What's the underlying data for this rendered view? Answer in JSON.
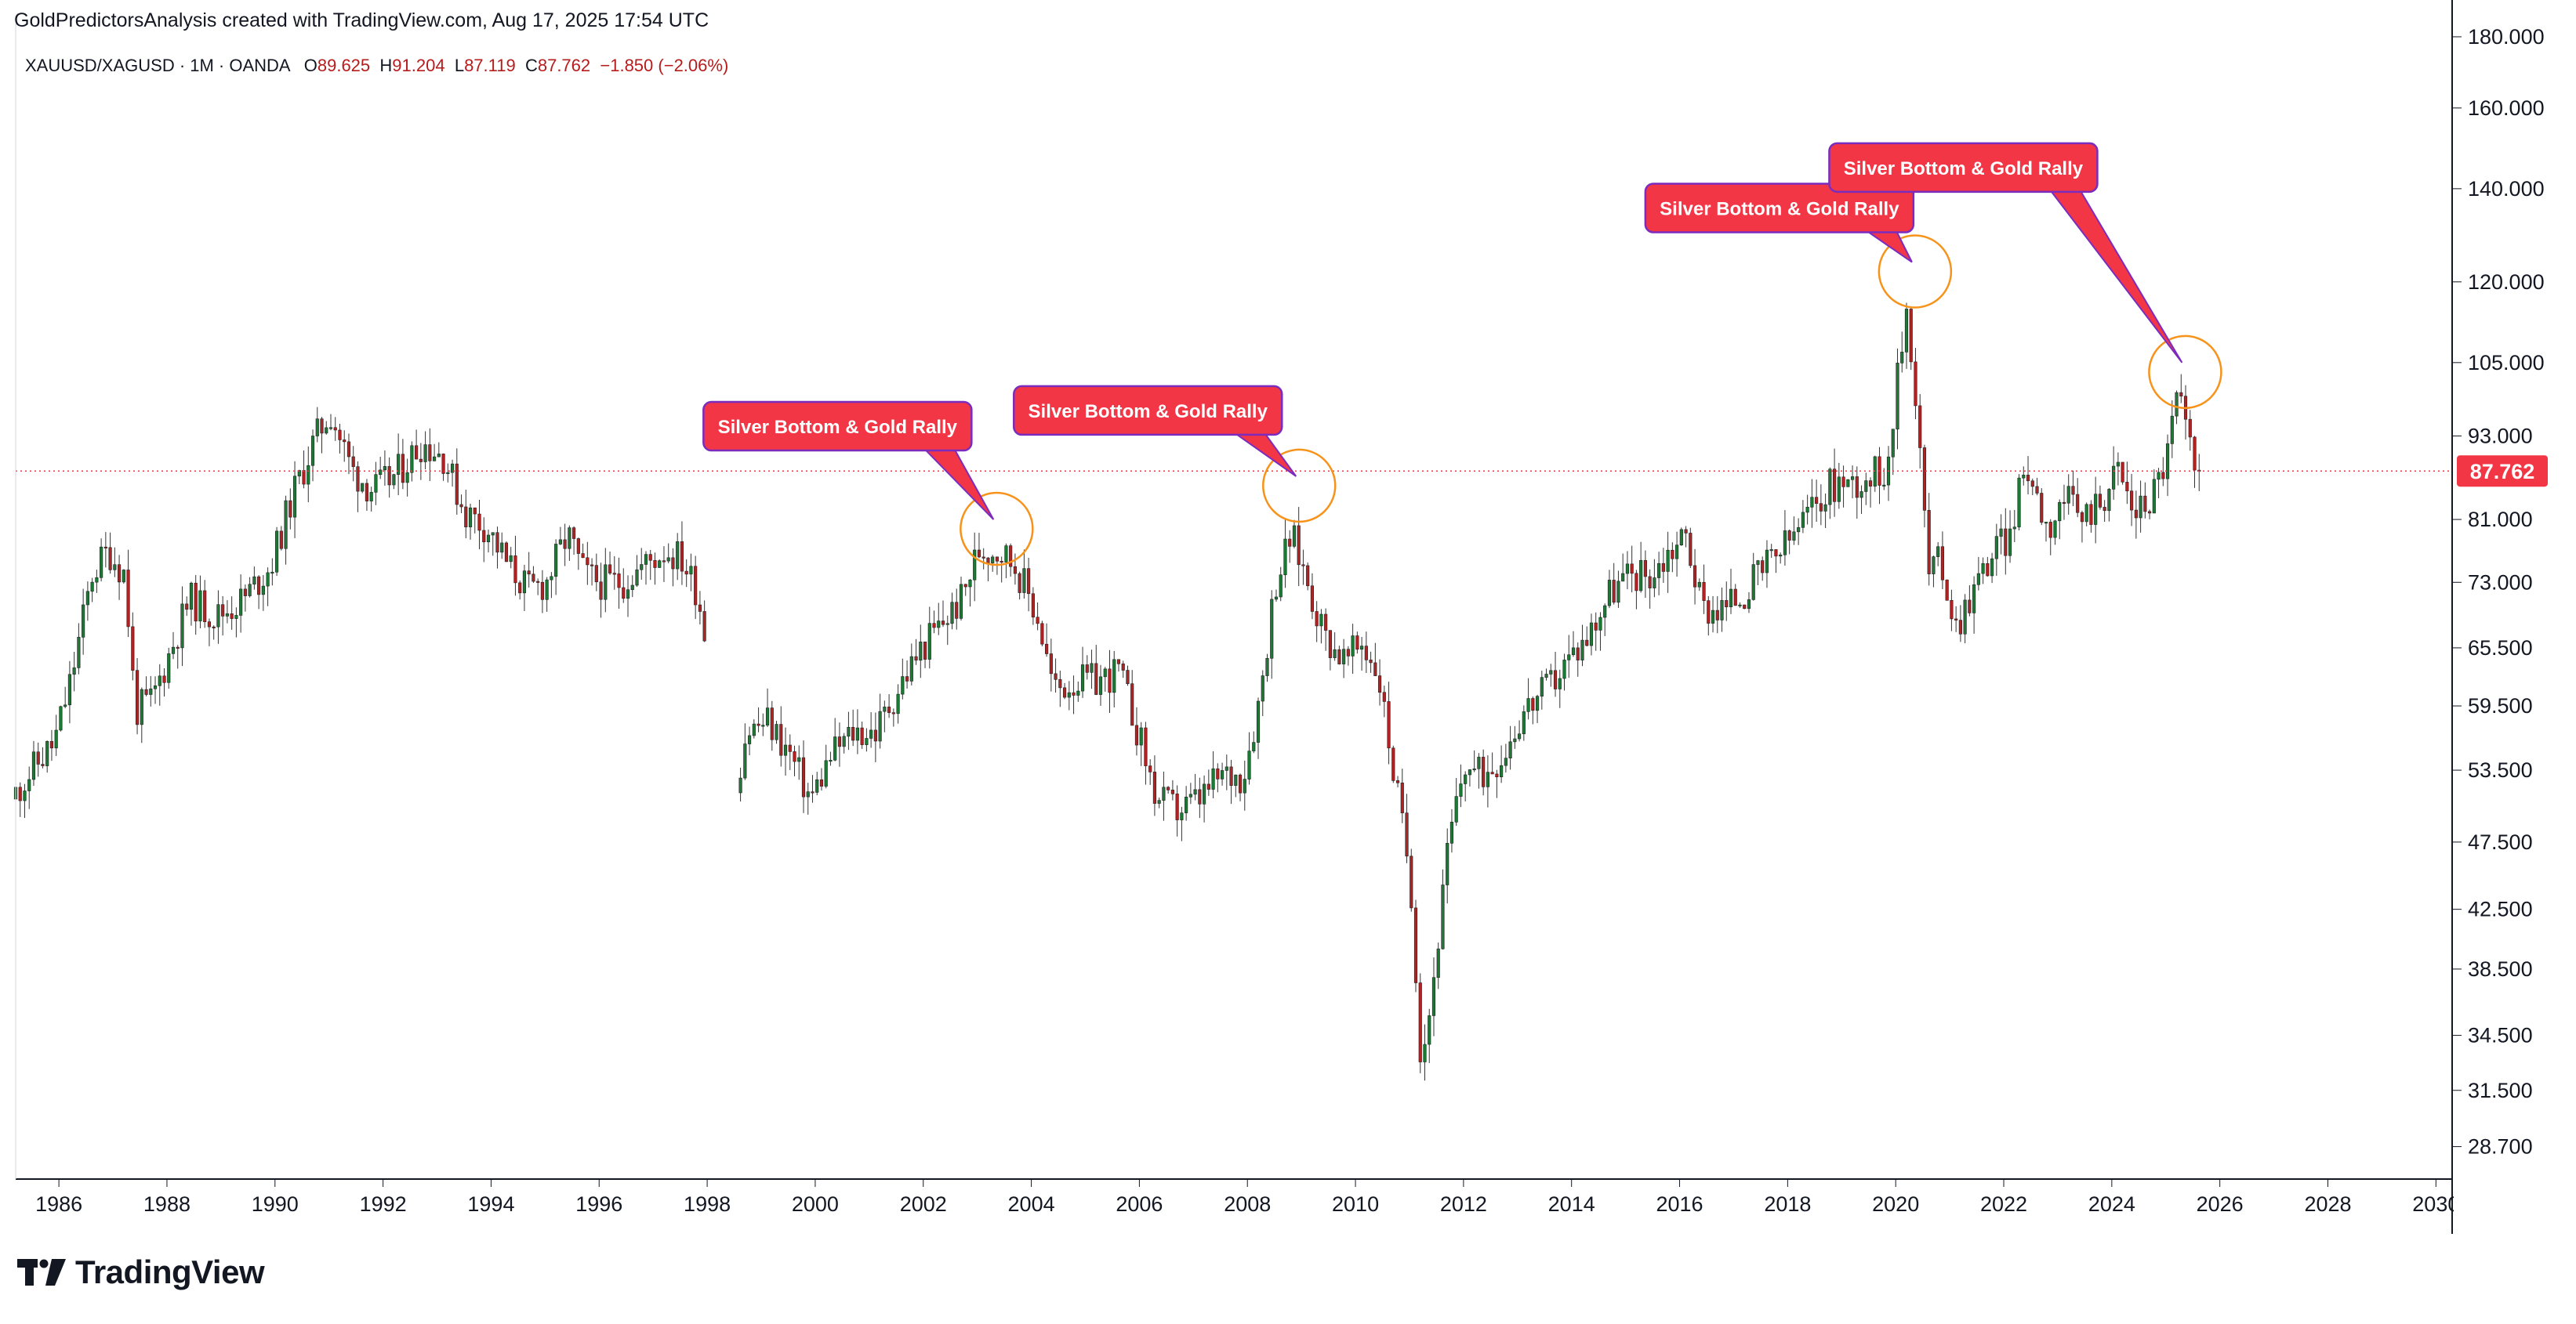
{
  "attribution": "GoldPredictorsAnalysis created with TradingView.com, Aug 17, 2025 17:54 UTC",
  "legend": {
    "symbol": "XAUUSD/XAGUSD · 1M · OANDA",
    "open_label": "O",
    "open": "89.625",
    "high_label": "H",
    "high": "91.204",
    "low_label": "L",
    "low": "87.119",
    "close_label": "C",
    "close": "87.762",
    "change": "−1.850 (−2.06%)"
  },
  "brand": "TradingView",
  "colors": {
    "up": "#26a69a",
    "down": "#b71c1c",
    "bar_up": "#1b7a34",
    "bar_down": "#b22222",
    "callout": "#f23645",
    "callout_border": "#7b2cbf",
    "circle": "#f7931a",
    "price_line": "#f23645"
  },
  "chart_data": {
    "type": "candlestick",
    "title": "XAUUSD/XAGUSD · 1M · OANDA",
    "y_scale": "log",
    "ylim": [
      27.2,
      184
    ],
    "xlim": [
      1985.2,
      2030.3
    ],
    "x_ticks": [
      "1986",
      "1988",
      "1990",
      "1992",
      "1994",
      "1996",
      "1998",
      "2000",
      "2002",
      "2004",
      "2006",
      "2008",
      "2010",
      "2012",
      "2014",
      "2016",
      "2018",
      "2020",
      "2022",
      "2024",
      "2026",
      "2028",
      "2030"
    ],
    "y_ticks": [
      "180.000",
      "160.000",
      "140.000",
      "120.000",
      "105.000",
      "93.000",
      "81.000",
      "73.000",
      "65.500",
      "59.500",
      "53.500",
      "47.500",
      "42.500",
      "38.500",
      "34.500",
      "31.500",
      "28.700"
    ],
    "last_price": "87.762",
    "anchors": [
      [
        1985.2,
        51
      ],
      [
        1985.5,
        53
      ],
      [
        1986.0,
        56
      ],
      [
        1986.3,
        62
      ],
      [
        1986.7,
        74
      ],
      [
        1987.0,
        77
      ],
      [
        1987.3,
        74
      ],
      [
        1987.5,
        59
      ],
      [
        1987.8,
        60
      ],
      [
        1988.2,
        66
      ],
      [
        1988.5,
        71
      ],
      [
        1989.0,
        69
      ],
      [
        1989.5,
        71
      ],
      [
        1990.0,
        75
      ],
      [
        1990.4,
        84
      ],
      [
        1990.8,
        92
      ],
      [
        1991.1,
        97
      ],
      [
        1991.5,
        88
      ],
      [
        1991.9,
        85
      ],
      [
        1992.3,
        87
      ],
      [
        1992.8,
        92
      ],
      [
        1993.2,
        90
      ],
      [
        1993.6,
        82
      ],
      [
        1994.0,
        80
      ],
      [
        1994.4,
        75
      ],
      [
        1994.8,
        72
      ],
      [
        1995.1,
        73
      ],
      [
        1995.5,
        79
      ],
      [
        1995.8,
        74
      ],
      [
        1996.1,
        73
      ],
      [
        1996.5,
        73
      ],
      [
        1996.9,
        75
      ],
      [
        1997.3,
        77
      ],
      [
        1997.6,
        76
      ],
      [
        1997.9,
        72
      ],
      [
        1998.2,
        62
      ],
      [
        1998.5,
        49
      ],
      [
        1998.8,
        57
      ],
      [
        1999.2,
        58
      ],
      [
        1999.6,
        55
      ],
      [
        2000.0,
        51
      ],
      [
        2000.4,
        55
      ],
      [
        2000.8,
        57
      ],
      [
        2001.2,
        57
      ],
      [
        2001.6,
        61
      ],
      [
        2002.0,
        65
      ],
      [
        2002.4,
        68
      ],
      [
        2002.8,
        71
      ],
      [
        2003.1,
        77
      ],
      [
        2003.5,
        77
      ],
      [
        2003.8,
        75
      ],
      [
        2004.2,
        69
      ],
      [
        2004.5,
        61
      ],
      [
        2004.9,
        62
      ],
      [
        2005.3,
        62
      ],
      [
        2005.7,
        63
      ],
      [
        2006.0,
        58
      ],
      [
        2006.4,
        51
      ],
      [
        2006.8,
        50
      ],
      [
        2007.2,
        51
      ],
      [
        2007.6,
        53
      ],
      [
        2008.0,
        53
      ],
      [
        2008.3,
        60
      ],
      [
        2008.6,
        73
      ],
      [
        2008.9,
        79
      ],
      [
        2009.2,
        73
      ],
      [
        2009.5,
        67
      ],
      [
        2009.9,
        64
      ],
      [
        2010.2,
        66
      ],
      [
        2010.5,
        63
      ],
      [
        2010.8,
        53
      ],
      [
        2011.1,
        45
      ],
      [
        2011.3,
        33
      ],
      [
        2011.5,
        37
      ],
      [
        2011.8,
        47
      ],
      [
        2012.1,
        54
      ],
      [
        2012.4,
        53
      ],
      [
        2012.8,
        55
      ],
      [
        2013.2,
        59
      ],
      [
        2013.6,
        61
      ],
      [
        2014.0,
        64
      ],
      [
        2014.4,
        67
      ],
      [
        2014.8,
        72
      ],
      [
        2015.2,
        74
      ],
      [
        2015.6,
        74
      ],
      [
        2015.9,
        77
      ],
      [
        2016.2,
        79
      ],
      [
        2016.5,
        70
      ],
      [
        2016.9,
        70
      ],
      [
        2017.3,
        72
      ],
      [
        2017.7,
        75
      ],
      [
        2018.1,
        78
      ],
      [
        2018.5,
        82
      ],
      [
        2018.9,
        86
      ],
      [
        2019.3,
        86
      ],
      [
        2019.6,
        87
      ],
      [
        2019.9,
        88
      ],
      [
        2020.1,
        101
      ],
      [
        2020.3,
        116
      ],
      [
        2020.5,
        94
      ],
      [
        2020.7,
        74
      ],
      [
        2020.9,
        76
      ],
      [
        2021.2,
        68
      ],
      [
        2021.5,
        72
      ],
      [
        2021.9,
        77
      ],
      [
        2022.2,
        79
      ],
      [
        2022.5,
        89
      ],
      [
        2022.9,
        80
      ],
      [
        2023.2,
        84
      ],
      [
        2023.5,
        81
      ],
      [
        2023.9,
        84
      ],
      [
        2024.2,
        88
      ],
      [
        2024.5,
        82
      ],
      [
        2024.8,
        84
      ],
      [
        2025.1,
        90
      ],
      [
        2025.3,
        100
      ],
      [
        2025.5,
        92
      ],
      [
        2025.62,
        87.762
      ]
    ],
    "annotations": [
      {
        "label": "Silver Bottom & Gold Rally",
        "target_x": 2003.3,
        "target_y": 81
      },
      {
        "label": "Silver Bottom & Gold Rally",
        "target_x": 2008.9,
        "target_y": 87
      },
      {
        "label": "Silver Bottom & Gold Rally",
        "target_x": 2020.3,
        "target_y": 124
      },
      {
        "label": "Silver Bottom & Gold Rally",
        "target_x": 2025.3,
        "target_y": 105
      }
    ]
  }
}
